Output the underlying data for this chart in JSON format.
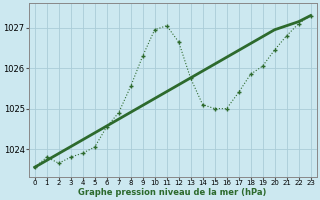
{
  "x": [
    0,
    1,
    2,
    3,
    4,
    5,
    6,
    7,
    8,
    9,
    10,
    11,
    12,
    13,
    14,
    15,
    16,
    17,
    18,
    19,
    20,
    21,
    22,
    23
  ],
  "y_line": [
    1023.55,
    1023.8,
    1023.65,
    1023.8,
    1023.9,
    1024.05,
    1024.55,
    1024.9,
    1025.55,
    1026.3,
    1026.95,
    1027.05,
    1026.65,
    1025.75,
    1025.1,
    1025.0,
    1025.0,
    1025.4,
    1025.85,
    1026.05,
    1026.45,
    1026.8,
    1027.1,
    1027.3
  ],
  "y_trend": [
    1023.55,
    1023.72,
    1023.89,
    1024.06,
    1024.23,
    1024.4,
    1024.57,
    1024.74,
    1024.91,
    1025.08,
    1025.25,
    1025.42,
    1025.59,
    1025.76,
    1025.93,
    1026.1,
    1026.27,
    1026.44,
    1026.61,
    1026.78,
    1026.95,
    1027.05,
    1027.15,
    1027.3
  ],
  "line_color": "#2d6a2d",
  "bg_color": "#cce8f0",
  "grid_color": "#aaccd8",
  "xlabel": "Graphe pression niveau de la mer (hPa)",
  "ylim": [
    1023.3,
    1027.6
  ],
  "xlim": [
    -0.5,
    23.5
  ],
  "yticks": [
    1024,
    1025,
    1026,
    1027
  ],
  "xticks": [
    0,
    1,
    2,
    3,
    4,
    5,
    6,
    7,
    8,
    9,
    10,
    11,
    12,
    13,
    14,
    15,
    16,
    17,
    18,
    19,
    20,
    21,
    22,
    23
  ]
}
